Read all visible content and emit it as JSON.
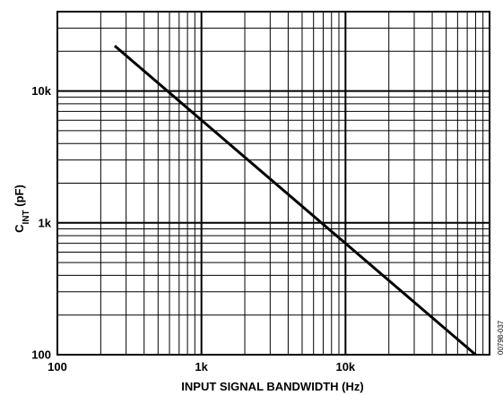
{
  "chart_data": {
    "type": "line",
    "x_scale": "log",
    "y_scale": "log",
    "xlim": [
      100,
      100000
    ],
    "ylim": [
      100,
      40000
    ],
    "x_ticks": [
      {
        "value": 100,
        "label": "100"
      },
      {
        "value": 1000,
        "label": "1k"
      },
      {
        "value": 10000,
        "label": "10k"
      }
    ],
    "y_ticks": [
      {
        "value": 100,
        "label": "100"
      },
      {
        "value": 1000,
        "label": "1k"
      },
      {
        "value": 10000,
        "label": "10k"
      }
    ],
    "xlabel": "INPUT SIGNAL BANDWIDTH (Hz)",
    "ylabel_main": "C",
    "ylabel_sub": "INT",
    "ylabel_rest": " (pF)",
    "grid": true,
    "figure_id": "00798-037",
    "series": [
      {
        "line_color": "#000000",
        "x": [
          250,
          80000
        ],
        "y": [
          22000,
          100
        ]
      }
    ]
  }
}
